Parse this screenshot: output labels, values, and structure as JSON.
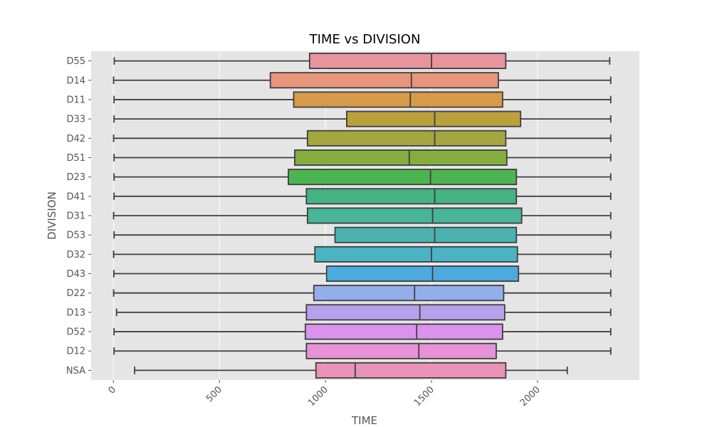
{
  "chart_data": {
    "type": "boxplot",
    "orientation": "horizontal",
    "title": "TIME vs DIVISION",
    "xlabel": "TIME",
    "ylabel": "DIVISION",
    "xlim": [
      -105,
      2480
    ],
    "xticks": [
      0,
      500,
      1000,
      1500,
      2000
    ],
    "xtick_labels": [
      "0",
      "500",
      "1000",
      "1500",
      "2000"
    ],
    "grid": true,
    "background": "#E5E5E5",
    "series": [
      {
        "category": "D55",
        "min": 4,
        "q1": 925,
        "median": 1500,
        "q3": 1850,
        "max": 2340,
        "color": "#E8939E"
      },
      {
        "category": "D14",
        "min": 1,
        "q1": 740,
        "median": 1405,
        "q3": 1815,
        "max": 2345,
        "color": "#E8967A"
      },
      {
        "category": "D11",
        "min": 3,
        "q1": 850,
        "median": 1400,
        "q3": 1835,
        "max": 2345,
        "color": "#D79A4A"
      },
      {
        "category": "D33",
        "min": 3,
        "q1": 1100,
        "median": 1515,
        "q3": 1920,
        "max": 2345,
        "color": "#BBA03E"
      },
      {
        "category": "D42",
        "min": 1,
        "q1": 915,
        "median": 1515,
        "q3": 1850,
        "max": 2345,
        "color": "#A5A63E"
      },
      {
        "category": "D51",
        "min": 3,
        "q1": 855,
        "median": 1395,
        "q3": 1855,
        "max": 2345,
        "color": "#85AD3E"
      },
      {
        "category": "D23",
        "min": 3,
        "q1": 825,
        "median": 1495,
        "q3": 1900,
        "max": 2345,
        "color": "#4DB550"
      },
      {
        "category": "D41",
        "min": 3,
        "q1": 910,
        "median": 1515,
        "q3": 1900,
        "max": 2345,
        "color": "#45B382"
      },
      {
        "category": "D31",
        "min": 1,
        "q1": 915,
        "median": 1505,
        "q3": 1925,
        "max": 2345,
        "color": "#48B498"
      },
      {
        "category": "D53",
        "min": 3,
        "q1": 1045,
        "median": 1515,
        "q3": 1900,
        "max": 2345,
        "color": "#4AB2AE"
      },
      {
        "category": "D32",
        "min": 1,
        "q1": 950,
        "median": 1500,
        "q3": 1905,
        "max": 2345,
        "color": "#4AB3C4"
      },
      {
        "category": "D43",
        "min": 2,
        "q1": 1005,
        "median": 1505,
        "q3": 1910,
        "max": 2345,
        "color": "#4DAADE"
      },
      {
        "category": "D22",
        "min": 1,
        "q1": 945,
        "median": 1420,
        "q3": 1840,
        "max": 2345,
        "color": "#93AEEB"
      },
      {
        "category": "D13",
        "min": 15,
        "q1": 910,
        "median": 1445,
        "q3": 1845,
        "max": 2345,
        "color": "#B8A1EC"
      },
      {
        "category": "D52",
        "min": 3,
        "q1": 905,
        "median": 1430,
        "q3": 1835,
        "max": 2345,
        "color": "#DA92ED"
      },
      {
        "category": "D12",
        "min": 3,
        "q1": 910,
        "median": 1440,
        "q3": 1805,
        "max": 2345,
        "color": "#E792D6"
      },
      {
        "category": "NSA",
        "min": 100,
        "q1": 955,
        "median": 1140,
        "q3": 1850,
        "max": 2140,
        "color": "#E993B9"
      }
    ]
  }
}
